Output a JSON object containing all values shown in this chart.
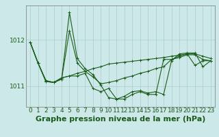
{
  "background_color": "#cce8e8",
  "grid_color": "#aacccc",
  "line_color": "#1a5c1a",
  "title": "Graphe pression niveau de la mer (hPa)",
  "xlim": [
    -0.5,
    23.5
  ],
  "ylim": [
    1010.55,
    1012.75
  ],
  "yticks": [
    1011,
    1012
  ],
  "xticks": [
    0,
    1,
    2,
    3,
    4,
    5,
    6,
    7,
    8,
    9,
    10,
    11,
    12,
    13,
    14,
    15,
    16,
    17,
    18,
    19,
    20,
    21,
    22,
    23
  ],
  "series": [
    [
      1011.95,
      1011.5,
      1011.1,
      1011.08,
      1011.15,
      1012.6,
      1011.6,
      1011.38,
      1011.25,
      1011.02,
      1010.75,
      1010.72,
      1010.78,
      1010.88,
      1010.9,
      1010.85,
      1010.88,
      1010.82,
      1011.55,
      1011.7,
      1011.72,
      1011.72,
      1011.42,
      1011.55
    ],
    [
      1011.95,
      1011.5,
      1011.1,
      1011.08,
      1011.15,
      1012.2,
      1011.5,
      1011.32,
      1011.2,
      1011.05,
      1011.08,
      1011.12,
      1011.18,
      1011.22,
      1011.28,
      1011.32,
      1011.38,
      1011.42,
      1011.58,
      1011.62,
      1011.68,
      1011.68,
      1011.58,
      1011.55
    ],
    [
      1011.95,
      1011.5,
      1011.12,
      1011.08,
      1011.18,
      1011.22,
      1011.28,
      1011.32,
      1011.38,
      1011.42,
      1011.48,
      1011.5,
      1011.52,
      1011.54,
      1011.56,
      1011.58,
      1011.6,
      1011.62,
      1011.65,
      1011.67,
      1011.7,
      1011.7,
      1011.65,
      1011.6
    ],
    [
      1011.95,
      1011.5,
      1011.12,
      1011.08,
      1011.18,
      1011.22,
      1011.22,
      1011.28,
      1010.95,
      1010.88,
      1010.95,
      1010.72,
      1010.72,
      1010.82,
      1010.88,
      1010.82,
      1010.82,
      1011.58,
      1011.58,
      1011.65,
      1011.7,
      1011.45,
      1011.55,
      1011.55
    ]
  ],
  "title_fontsize": 8,
  "tick_fontsize": 6.5,
  "linewidth": 0.8,
  "markersize": 2.5
}
